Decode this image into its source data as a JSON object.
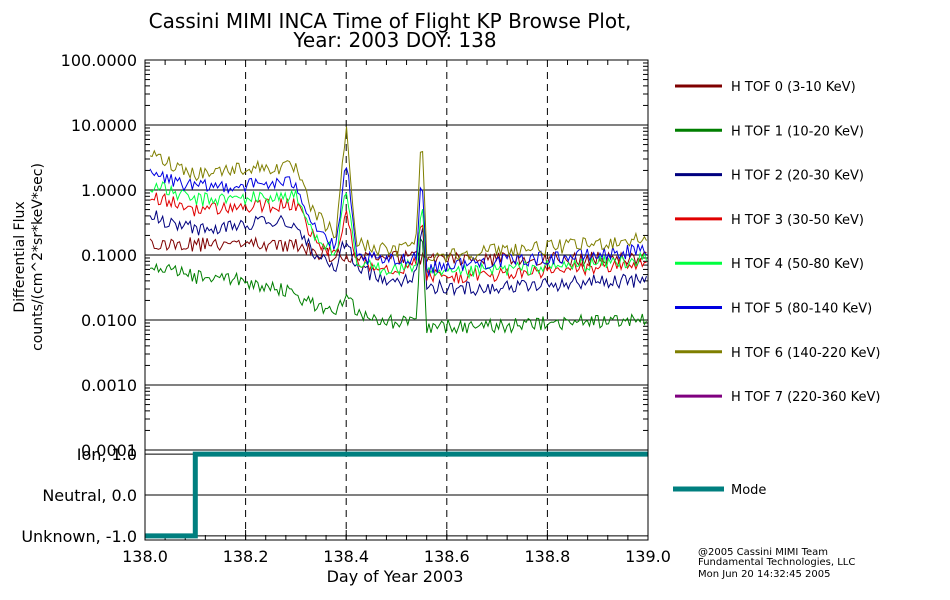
{
  "chart_data": {
    "type": "line",
    "title_line1": "Cassini MIMI INCA Time of Flight KP Browse Plot,",
    "title_line2": "Year: 2003 DOY: 138",
    "ylabel_line1": "Differential Flux",
    "ylabel_line2": "counts/(cm^2*sr*keV*sec)",
    "xlabel": "Day of Year 2003",
    "xlim": [
      138.0,
      139.0
    ],
    "xticks": [
      138.0,
      138.2,
      138.4,
      138.6,
      138.8,
      139.0
    ],
    "xtick_labels": [
      "138.0",
      "138.2",
      "138.4",
      "138.6",
      "138.8",
      "139.0"
    ],
    "ylim_log": [
      0.0001,
      100
    ],
    "yticks": [
      100,
      10,
      1,
      0.1,
      0.01,
      0.001,
      0.0001
    ],
    "ytick_labels": [
      "100.0000",
      "10.0000",
      "1.0000",
      "0.1000",
      "0.0100",
      "0.0010",
      "0.0001"
    ],
    "grid": "horizontal solid, vertical dashed",
    "series": [
      {
        "name": "H TOF 0 (3-10 KeV)",
        "color": "#7f0000",
        "x": [
          138.0,
          138.01,
          138.1,
          138.2,
          138.3,
          138.35,
          138.5,
          138.6,
          138.7,
          138.8,
          138.9,
          139.0
        ],
        "values": [
          null,
          0.16,
          0.145,
          0.145,
          0.14,
          0.1,
          0.09,
          0.088,
          0.086,
          0.086,
          0.087,
          0.088
        ]
      },
      {
        "name": "H TOF 1 (10-20 KeV)",
        "color": "#007f00",
        "x": [
          138.0,
          138.01,
          138.1,
          138.2,
          138.3,
          138.32,
          138.38,
          138.4,
          138.42,
          138.5,
          138.54,
          138.55,
          138.56,
          138.6,
          138.7,
          138.8,
          138.9,
          139.0
        ],
        "values": [
          null,
          0.07,
          0.045,
          0.04,
          0.025,
          0.02,
          0.012,
          0.03,
          0.013,
          0.009,
          0.01,
          0.35,
          0.007,
          0.008,
          0.008,
          0.009,
          0.0095,
          0.01
        ]
      },
      {
        "name": "H TOF 2 (20-30 KeV)",
        "color": "#00007f",
        "x": [
          138.0,
          138.01,
          138.1,
          138.2,
          138.3,
          138.33,
          138.38,
          138.4,
          138.42,
          138.5,
          138.54,
          138.55,
          138.56,
          138.6,
          138.7,
          138.8,
          138.9,
          139.0
        ],
        "values": [
          null,
          0.4,
          0.25,
          0.3,
          0.32,
          0.12,
          0.06,
          0.2,
          0.06,
          0.04,
          0.05,
          0.3,
          0.035,
          0.03,
          0.032,
          0.035,
          0.04,
          0.04
        ]
      },
      {
        "name": "H TOF 3 (30-50 KeV)",
        "color": "#e00000",
        "x": [
          138.0,
          138.01,
          138.1,
          138.2,
          138.3,
          138.33,
          138.38,
          138.4,
          138.42,
          138.5,
          138.54,
          138.55,
          138.56,
          138.6,
          138.7,
          138.8,
          138.9,
          139.0
        ],
        "values": [
          null,
          0.8,
          0.5,
          0.55,
          0.6,
          0.2,
          0.09,
          0.5,
          0.08,
          0.06,
          0.08,
          0.5,
          0.05,
          0.045,
          0.05,
          0.055,
          0.065,
          0.075
        ]
      },
      {
        "name": "H TOF 4 (50-80 KeV)",
        "color": "#00ff3f",
        "x": [
          138.0,
          138.01,
          138.1,
          138.2,
          138.3,
          138.33,
          138.38,
          138.4,
          138.42,
          138.5,
          138.54,
          138.55,
          138.56,
          138.6,
          138.7,
          138.8,
          138.9,
          139.0
        ],
        "values": [
          null,
          1.2,
          0.7,
          0.75,
          0.8,
          0.25,
          0.1,
          1.0,
          0.07,
          0.06,
          0.07,
          0.7,
          0.05,
          0.05,
          0.06,
          0.065,
          0.075,
          0.085
        ]
      },
      {
        "name": "H TOF 5 (80-140 KeV)",
        "color": "#0000e0",
        "x": [
          138.0,
          138.01,
          138.1,
          138.2,
          138.3,
          138.33,
          138.38,
          138.4,
          138.42,
          138.5,
          138.54,
          138.55,
          138.56,
          138.6,
          138.7,
          138.8,
          138.9,
          139.0
        ],
        "values": [
          null,
          1.8,
          1.1,
          1.2,
          1.3,
          0.35,
          0.12,
          3.0,
          0.09,
          0.08,
          0.1,
          2.0,
          0.06,
          0.07,
          0.08,
          0.09,
          0.1,
          0.12
        ]
      },
      {
        "name": "H TOF 6 (140-220 KeV)",
        "color": "#7f7f00",
        "x": [
          138.0,
          138.01,
          138.1,
          138.2,
          138.3,
          138.33,
          138.38,
          138.4,
          138.42,
          138.5,
          138.54,
          138.55,
          138.56,
          138.6,
          138.7,
          138.8,
          138.9,
          139.0
        ],
        "values": [
          null,
          3.5,
          1.8,
          2.2,
          2.2,
          0.5,
          0.2,
          10.0,
          0.15,
          0.11,
          0.2,
          8.0,
          0.1,
          0.1,
          0.12,
          0.13,
          0.15,
          0.18
        ]
      },
      {
        "name": "H TOF 7 (220-360 KeV)",
        "color": "#7f007f",
        "x": [],
        "values": []
      }
    ],
    "mode_panel": {
      "series_name": "Mode",
      "color": "#007f7f",
      "ytick_labels": [
        "Ion, 1.0",
        "Neutral, 0.0",
        "Unknown, -1.0"
      ],
      "yticks": [
        1.0,
        0.0,
        -1.0
      ],
      "ylim": [
        -1.1,
        1.1
      ],
      "x": [
        138.0,
        138.1,
        138.1,
        139.0
      ],
      "values": [
        -1.0,
        -1.0,
        1.0,
        1.0
      ]
    },
    "credits": [
      "@2005 Cassini MIMI Team",
      "Fundamental Technologies, LLC",
      "Mon Jun 20 14:32:45 2005"
    ]
  }
}
